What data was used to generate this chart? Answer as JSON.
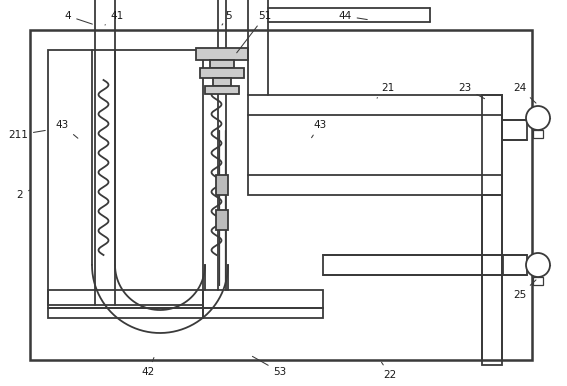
{
  "bg_color": "#ffffff",
  "lc": "#3a3a3a",
  "lw": 1.3,
  "tlw": 0.9,
  "fig_width": 5.67,
  "fig_height": 3.86,
  "dpi": 100
}
